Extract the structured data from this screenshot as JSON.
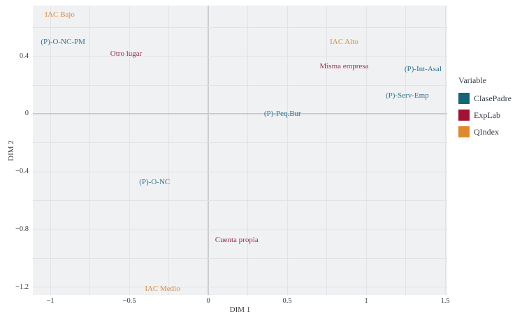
{
  "chart_data": {
    "type": "scatter",
    "subtype": "text-label-biplot",
    "title": "",
    "xlabel": "DIM 1",
    "ylabel": "DIM 2",
    "xlim": [
      -1.111,
      1.513
    ],
    "ylim": [
      -1.254,
      0.751
    ],
    "grid": true,
    "panel_bg": "#f0f1f3",
    "gridline_color": "#e1e3e7",
    "zeroline_color": "#c9cbd0",
    "x_gridlines": [
      -1,
      -0.75,
      -0.5,
      -0.25,
      0,
      0.25,
      0.5,
      0.75,
      1,
      1.25,
      1.5
    ],
    "y_gridlines": [
      -1.2,
      -1.0,
      -0.8,
      -0.6,
      -0.4,
      -0.2,
      0,
      0.2,
      0.4,
      0.6
    ],
    "x_ticks": [
      {
        "v": -1,
        "label": "−1"
      },
      {
        "v": -0.5,
        "label": "−0.5"
      },
      {
        "v": 0,
        "label": "0"
      },
      {
        "v": 0.5,
        "label": "0.5"
      },
      {
        "v": 1,
        "label": "1"
      },
      {
        "v": 1.5,
        "label": "1.5"
      }
    ],
    "y_ticks": [
      {
        "v": 0.4,
        "label": "0.4"
      },
      {
        "v": 0,
        "label": "0"
      },
      {
        "v": -0.4,
        "label": "−0.4"
      },
      {
        "v": -0.8,
        "label": "−0.8"
      },
      {
        "v": -1.2,
        "label": "−1.2"
      }
    ],
    "legend_title": "Variable",
    "legend_position": "right",
    "series": [
      {
        "name": "ClasePadre",
        "color": "#156579",
        "text_color": "#2d7594",
        "points": [
          {
            "label": "(P)-O-NC-PM",
            "x": -0.92,
            "y": 0.5
          },
          {
            "label": "(P)-Int-Asal",
            "x": 1.36,
            "y": 0.31
          },
          {
            "label": "(P)-Serv-Emp",
            "x": 1.26,
            "y": 0.13
          },
          {
            "label": "(P)-Peq.Bur",
            "x": 0.47,
            "y": 0.0
          },
          {
            "label": "(P)-O-NC",
            "x": -0.34,
            "y": -0.47
          }
        ]
      },
      {
        "name": "ExpLab",
        "color": "#a31233",
        "text_color": "#9d3048",
        "points": [
          {
            "label": "Otro lugar",
            "x": -0.52,
            "y": 0.42
          },
          {
            "label": "Misma empresa",
            "x": 0.86,
            "y": 0.33
          },
          {
            "label": "Cuenta propia",
            "x": 0.18,
            "y": -0.87
          }
        ]
      },
      {
        "name": "QIndex",
        "color": "#e0882c",
        "text_color": "#d98c42",
        "points": [
          {
            "label": "IAC Bajo",
            "x": -0.94,
            "y": 0.69
          },
          {
            "label": "IAC Alto",
            "x": 0.86,
            "y": 0.5
          },
          {
            "label": "IAC Medio",
            "x": -0.29,
            "y": -1.21
          }
        ]
      }
    ]
  }
}
